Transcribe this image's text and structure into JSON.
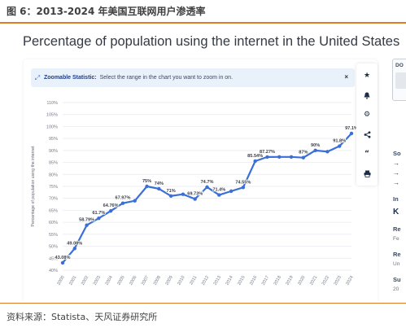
{
  "figure": {
    "title": "图 6：2013-2024 年美国互联网用户渗透率",
    "source": "资料来源：Statista、天风证券研究所"
  },
  "statista": {
    "heading": "Percentage of population using the internet in the United States",
    "zoom_label": "Zoomable Statistic:",
    "zoom_text": "Select the range in the chart you want to zoom in on.",
    "zoom_close": "×",
    "toolbar_icons": [
      "star-icon",
      "bell-icon",
      "gear-icon",
      "share-icon",
      "quote-icon",
      "print-icon"
    ],
    "sidebar": {
      "box_text": "DO",
      "sou": "So",
      "arrows": [
        "→",
        "→",
        "→"
      ],
      "in": "In",
      "k": "K",
      "re1": "Re",
      "fe": "Fe",
      "re2": "Re",
      "un": "Un",
      "su1": "Su",
      "y20": "20",
      "su2": "Su",
      "th": "Th"
    }
  },
  "chart_data": {
    "type": "line",
    "ylabel": "Percentage of population using the internet",
    "xlabel": "",
    "title": "",
    "x": [
      "2000",
      "2001",
      "2002",
      "2003",
      "2004",
      "2005",
      "2006",
      "2007",
      "2008",
      "2009",
      "2010",
      "2011",
      "2012",
      "2013",
      "2014",
      "2015",
      "2016",
      "2017",
      "2018",
      "2019",
      "2020",
      "2021",
      "2022",
      "2023",
      "2024"
    ],
    "y_ticks": [
      "40%",
      "45%",
      "50%",
      "55%",
      "60%",
      "65%",
      "70%",
      "75%",
      "80%",
      "85%",
      "90%",
      "95%",
      "100%",
      "105%",
      "110%"
    ],
    "ylim": [
      40,
      110
    ],
    "grid": true,
    "color": "#3a6fd8",
    "series": [
      {
        "values": [
          43.08,
          49.08,
          58.79,
          61.7,
          64.76,
          67.97,
          69,
          75,
          74,
          71,
          71.7,
          69.73,
          74.7,
          71.4,
          73,
          74.55,
          85.54,
          87.27,
          87.3,
          87.3,
          87,
          90,
          89.5,
          91.8,
          97.1
        ],
        "labels": [
          "43.08%",
          "49.08%",
          "58.79%",
          "61.7%",
          "64.76%",
          "67.97%",
          "",
          "75%",
          "74%",
          "71%",
          "",
          "69.73%",
          "74.7%",
          "71.4%",
          "",
          "74.55%",
          "85.54%",
          "87.27%",
          "",
          "",
          "87%",
          "90%",
          "",
          "91.8%",
          "97.1%"
        ]
      }
    ]
  }
}
